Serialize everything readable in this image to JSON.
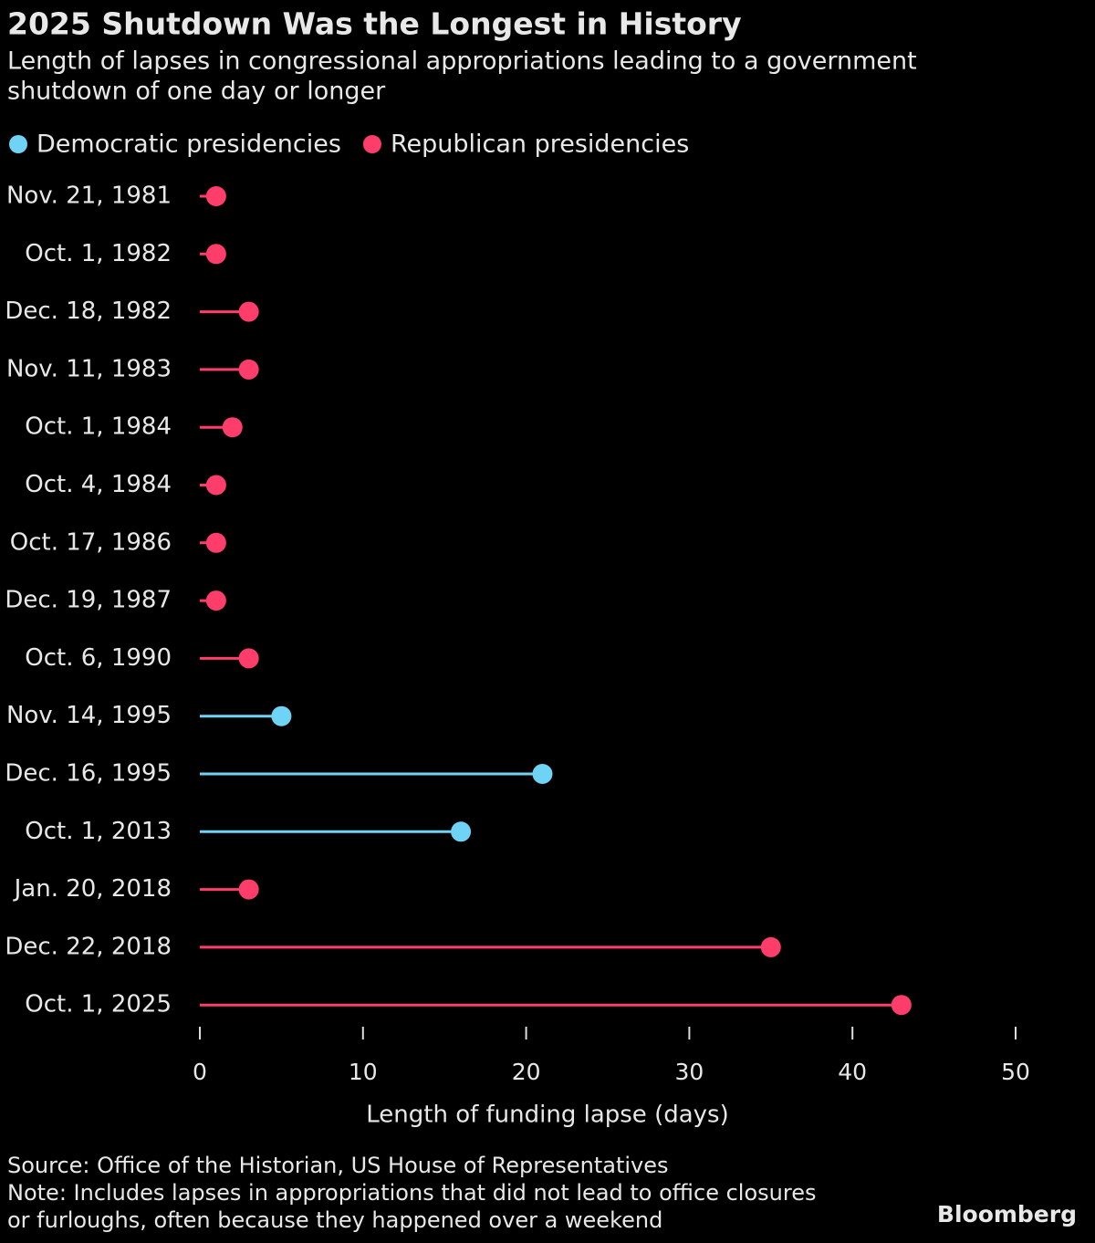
{
  "chart_data": {
    "type": "lollipop",
    "title": "2025 Shutdown Was the Longest in History",
    "subtitle": [
      "Length of lapses in congressional appropriations leading to a government",
      "shutdown of one day or longer"
    ],
    "categories": [
      "Nov. 21, 1981",
      "Oct. 1, 1982",
      "Dec. 18, 1982",
      "Nov. 11, 1983",
      "Oct. 1, 1984",
      "Oct. 4, 1984",
      "Oct. 17, 1986",
      "Dec. 19, 1987",
      "Oct. 6, 1990",
      "Nov. 14, 1995",
      "Dec. 16, 1995",
      "Oct. 1, 2013",
      "Jan. 20, 2018",
      "Dec. 22, 2018",
      "Oct. 1, 2025"
    ],
    "series": [
      {
        "name": "Democratic presidencies",
        "color": "#6fd3f5",
        "values": [
          null,
          null,
          null,
          null,
          null,
          null,
          null,
          null,
          null,
          5,
          21,
          16,
          null,
          null,
          null
        ]
      },
      {
        "name": "Republican presidencies",
        "color": "#ff3d6b",
        "values": [
          1,
          1,
          3,
          3,
          2,
          1,
          1,
          1,
          3,
          null,
          null,
          null,
          3,
          35,
          43
        ]
      }
    ],
    "xlim": [
      0,
      50
    ],
    "xticks": [
      0,
      10,
      20,
      30,
      40,
      50
    ],
    "xlabel": "Length of funding lapse (days)",
    "source": "Source: Office of the Historian, US House of Representatives",
    "note": [
      "Note: Includes lapses in appropriations that did not lead to office closures",
      "or furloughs, often because they happened over a weekend"
    ],
    "brand": "Bloomberg"
  }
}
